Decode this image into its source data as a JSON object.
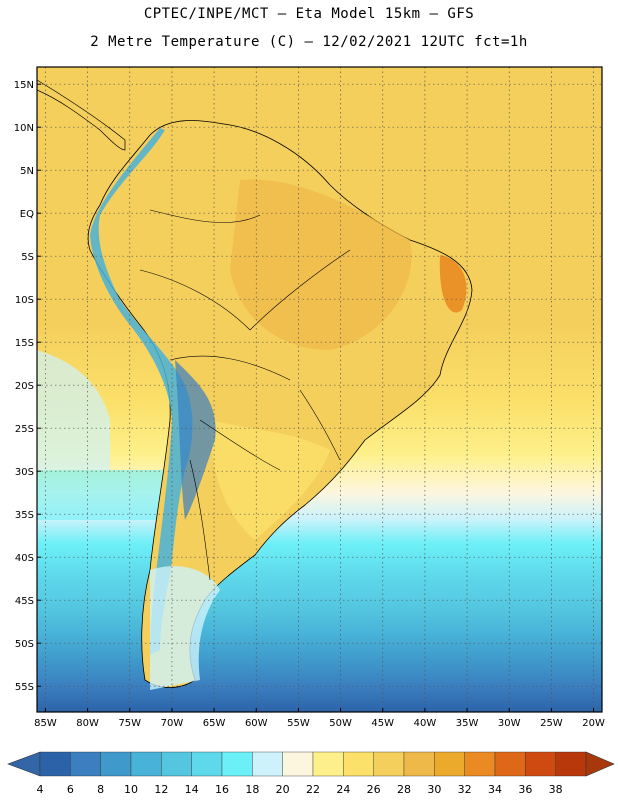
{
  "header": {
    "line1": "CPTEC/INPE/MCT –  Eta Model 15km – GFS",
    "line2": "2 Metre Temperature (C) – 12/02/2021 12UTC fct=1h"
  },
  "map": {
    "lat_labels": [
      "15N",
      "10N",
      "5N",
      "EQ",
      "5S",
      "10S",
      "15S",
      "20S",
      "25S",
      "30S",
      "35S",
      "40S",
      "45S",
      "50S",
      "55S"
    ],
    "lat_values": [
      15,
      10,
      5,
      0,
      -5,
      -10,
      -15,
      -20,
      -25,
      -30,
      -35,
      -40,
      -45,
      -50,
      -55
    ],
    "lon_labels": [
      "85W",
      "80W",
      "75W",
      "70W",
      "65W",
      "60W",
      "55W",
      "50W",
      "45W",
      "40W",
      "35W",
      "30W",
      "25W",
      "20W"
    ],
    "lon_values": [
      -85,
      -80,
      -75,
      -70,
      -65,
      -60,
      -55,
      -50,
      -45,
      -40,
      -35,
      -30,
      -25,
      -20
    ],
    "lon_range": [
      -86,
      -19
    ],
    "lat_range": [
      -58,
      17
    ],
    "grid": "dotted"
  },
  "colorbar": {
    "labels": [
      "4",
      "6",
      "8",
      "10",
      "12",
      "14",
      "16",
      "18",
      "20",
      "22",
      "24",
      "26",
      "28",
      "30",
      "32",
      "34",
      "36",
      "38"
    ],
    "colors": [
      "#2c63a8",
      "#3b7fc0",
      "#3f99cb",
      "#48b2d8",
      "#54c6e0",
      "#5ed8eb",
      "#6cf0f7",
      "#cdf2fb",
      "#fdf6df",
      "#fdf08a",
      "#fbe06a",
      "#f5cf5c",
      "#efb94a",
      "#ecaa2c",
      "#e98b22",
      "#df6818",
      "#cf4a10",
      "#b8380b"
    ],
    "low_extend_color": "#3266a8",
    "high_extend_color": "#a8380b"
  },
  "icons": {
    "left_arrow": "colorbar-low-extend-triangle",
    "right_arrow": "colorbar-high-extend-triangle"
  }
}
